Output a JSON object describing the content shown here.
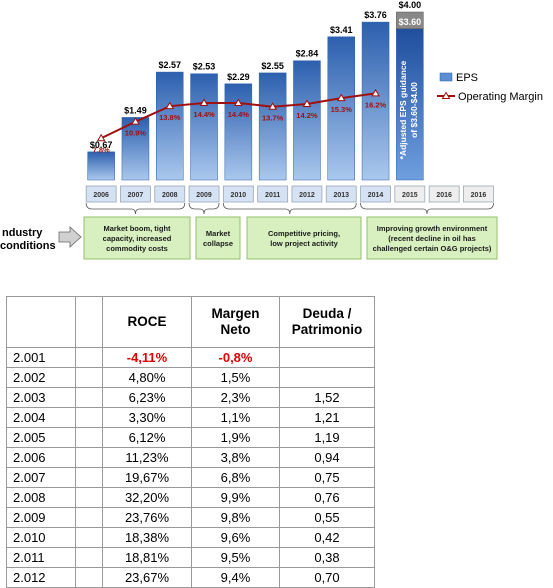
{
  "chart_data": {
    "type": "bar",
    "categories": [
      "2006",
      "2007",
      "2008",
      "2009",
      "2010",
      "2011",
      "2012",
      "2013",
      "2014",
      "2015",
      "2016",
      "2016"
    ],
    "series": [
      {
        "name": "EPS",
        "type": "bar",
        "values": [
          0.67,
          1.49,
          2.57,
          2.53,
          2.29,
          2.55,
          2.84,
          3.41,
          3.76,
          null,
          null,
          null
        ],
        "labels": [
          "$0.67",
          "$1.49",
          "$2.57",
          "$2.53",
          "$2.29",
          "$2.55",
          "$2.84",
          "$3.41",
          "$3.76",
          "",
          "",
          ""
        ]
      },
      {
        "name": "Operating Margin",
        "type": "line",
        "values": [
          7.8,
          10.9,
          13.8,
          14.4,
          14.4,
          13.7,
          14.2,
          15.3,
          16.2,
          null,
          null,
          null
        ],
        "labels": [
          "7.8%",
          "10.9%",
          "13.8%",
          "14.4%",
          "14.4%",
          "13.7%",
          "14.2%",
          "15.3%",
          "16.2%",
          "",
          "",
          ""
        ]
      }
    ],
    "guidance": {
      "low": 3.6,
      "high": 4.0,
      "low_label": "$3.60",
      "high_label": "$4.00",
      "note": "*Adjusted EPS guidance of $3.60-$4.00"
    },
    "ylim": [
      0,
      4.2
    ],
    "margin_ylim": [
      0,
      23
    ],
    "legend": {
      "position": "right",
      "items": [
        "EPS",
        "Operating Margin"
      ]
    },
    "industry_label": "Industry conditions",
    "industry_label_visible": "ndustry\nconditions",
    "conditions": [
      {
        "text": "Market boom, tight capacity, increased commodity costs",
        "years": [
          "2006",
          "2007",
          "2008"
        ]
      },
      {
        "text": "Market collapse",
        "years": [
          "2009"
        ]
      },
      {
        "text": "Competitive pricing, low project activity",
        "years": [
          "2010",
          "2011",
          "2012",
          "2013"
        ]
      },
      {
        "text": "Improving growth environment (recent decline in oil has challenged certain O&G projects)",
        "years": [
          "2014",
          "2015",
          "2016"
        ]
      }
    ],
    "colors": {
      "bar": "#5b8fd1",
      "bar_dark": "#2c5fae",
      "line": "#a01010",
      "guidance": "#888888",
      "condition_fill": "#d8f0c0",
      "condition_border": "#93c06a",
      "year_fill": "#d5e2f3"
    }
  },
  "table": {
    "headers": [
      "",
      "",
      "ROCE",
      "Margen Neto",
      "Deuda / Patrimonio"
    ],
    "rows": [
      {
        "year": "2.001",
        "roce": "-4,11%",
        "margin": "-0,8%",
        "debt": "",
        "negative": true
      },
      {
        "year": "2.002",
        "roce": "4,80%",
        "margin": "1,5%",
        "debt": ""
      },
      {
        "year": "2.003",
        "roce": "6,23%",
        "margin": "2,3%",
        "debt": "1,52"
      },
      {
        "year": "2.004",
        "roce": "3,30%",
        "margin": "1,1%",
        "debt": "1,21"
      },
      {
        "year": "2.005",
        "roce": "6,12%",
        "margin": "1,9%",
        "debt": "1,19"
      },
      {
        "year": "2.006",
        "roce": "11,23%",
        "margin": "3,8%",
        "debt": "0,94"
      },
      {
        "year": "2.007",
        "roce": "19,67%",
        "margin": "6,8%",
        "debt": "0,75"
      },
      {
        "year": "2.008",
        "roce": "32,20%",
        "margin": "9,9%",
        "debt": "0,76"
      },
      {
        "year": "2.009",
        "roce": "23,76%",
        "margin": "9,8%",
        "debt": "0,55"
      },
      {
        "year": "2.010",
        "roce": "18,38%",
        "margin": "9,6%",
        "debt": "0,42"
      },
      {
        "year": "2.011",
        "roce": "18,81%",
        "margin": "9,5%",
        "debt": "0,38"
      },
      {
        "year": "2.012",
        "roce": "23,67%",
        "margin": "9,4%",
        "debt": "0,70"
      }
    ]
  }
}
